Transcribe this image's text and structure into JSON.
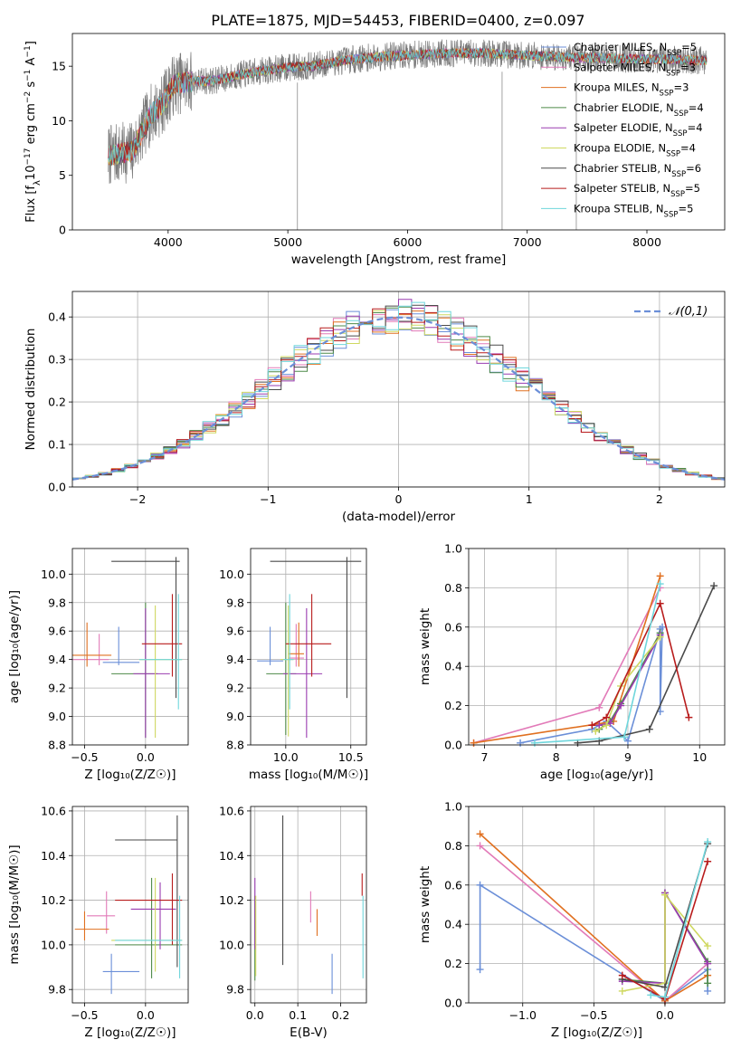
{
  "title": "PLATE=1875, MJD=54453, FIBERID=0400, z=0.097",
  "models": [
    {
      "label": "Chabrier MILES, N",
      "sub": "SSP",
      "tail": "=5",
      "color": "#6b8fd8"
    },
    {
      "label": "Salpeter MILES, N",
      "sub": "SSP",
      "tail": "=3",
      "color": "#e27ab8"
    },
    {
      "label": "Kroupa MILES, N",
      "sub": "SSP",
      "tail": "=3",
      "color": "#e07020"
    },
    {
      "label": "Chabrier ELODIE, N",
      "sub": "SSP",
      "tail": "=4",
      "color": "#4e8a48"
    },
    {
      "label": "Salpeter ELODIE, N",
      "sub": "SSP",
      "tail": "=4",
      "color": "#9a3bb0"
    },
    {
      "label": "Kroupa ELODIE, N",
      "sub": "SSP",
      "tail": "=4",
      "color": "#cfd860"
    },
    {
      "label": "Chabrier STELIB, N",
      "sub": "SSP",
      "tail": "=6",
      "color": "#4a4a4a"
    },
    {
      "label": "Salpeter STELIB, N",
      "sub": "SSP",
      "tail": "=5",
      "color": "#b81c1c"
    },
    {
      "label": "Kroupa STELIB, N",
      "sub": "SSP",
      "tail": "=5",
      "color": "#6fd6dc"
    }
  ],
  "chart_data": [
    {
      "id": "spectrum",
      "type": "line",
      "xlabel": "wavelength [Angstrom, rest frame]",
      "ylabel": "Flux [f",
      "ylabel_parts": [
        "Flux [f",
        "λ",
        "10",
        "−17",
        " erg cm",
        "−2",
        " s",
        "−1",
        " A",
        "−1",
        "]"
      ],
      "xlim": [
        3200,
        8650
      ],
      "ylim": [
        0,
        18
      ],
      "xticks": [
        4000,
        5000,
        6000,
        7000,
        8000
      ],
      "yticks": [
        0,
        5,
        10,
        15
      ],
      "continuum_anchors": {
        "wavelength": [
          3500,
          3700,
          3850,
          3950,
          4050,
          4200,
          4400,
          4600,
          4800,
          5000,
          5200,
          5500,
          5800,
          6000,
          6300,
          6600,
          7000,
          7400,
          7800,
          8200,
          8500
        ],
        "flux": [
          6.8,
          7.2,
          10.5,
          11.5,
          13.4,
          13.6,
          13.7,
          14.2,
          14.6,
          14.9,
          15.0,
          15.6,
          15.9,
          16.0,
          16.2,
          16.2,
          16.0,
          15.8,
          15.7,
          15.6,
          15.5
        ]
      },
      "spikes": [
        {
          "x": 5080,
          "ymin": 0,
          "ymax": 13.5
        },
        {
          "x": 6790,
          "ymin": 0,
          "ymax": 14.5
        },
        {
          "x": 7410,
          "ymin": 0,
          "ymax": 16.0
        }
      ]
    },
    {
      "id": "residual_histogram",
      "type": "histogram",
      "xlabel": "(data-model)/error",
      "ylabel": "Normed distribution",
      "xlim": [
        -2.5,
        2.5
      ],
      "ylim": [
        0,
        0.46
      ],
      "xticks": [
        -2,
        -1,
        0,
        1,
        2
      ],
      "yticks": [
        0.0,
        0.1,
        0.2,
        0.3,
        0.4
      ],
      "bin_width": 0.1,
      "reference": {
        "label": "𝒩(0,1)",
        "mean": 0,
        "sigma": 1,
        "color": "#6b8fd8"
      }
    },
    {
      "id": "age_vs_Z",
      "type": "errorbar",
      "xlabel": "Z [log₁₀(Z/Z☉)]",
      "ylabel": "age  [log₁₀(age/yr)]",
      "xlim": [
        -0.6,
        0.35
      ],
      "ylim": [
        8.8,
        10.18
      ],
      "xticks": [
        -0.5,
        0.0
      ],
      "yticks": [
        8.8,
        9.0,
        9.2,
        9.4,
        9.6,
        9.8,
        10.0
      ],
      "points": [
        {
          "x": -0.22,
          "y": 9.38,
          "xlo": -0.35,
          "xhi": -0.05,
          "ylo": 9.36,
          "yhi": 9.63
        },
        {
          "x": -0.38,
          "y": 9.4,
          "xlo": -0.6,
          "xhi": -0.3,
          "ylo": 9.36,
          "yhi": 9.58
        },
        {
          "x": -0.48,
          "y": 9.43,
          "xlo": -0.6,
          "xhi": -0.28,
          "ylo": 9.35,
          "yhi": 9.66
        },
        {
          "x": 0.0,
          "y": 9.3,
          "xlo": -0.28,
          "xhi": 0.1,
          "ylo": 8.85,
          "yhi": 9.8
        },
        {
          "x": 0.0,
          "y": 9.3,
          "xlo": -0.1,
          "xhi": 0.2,
          "ylo": 8.85,
          "yhi": 9.76
        },
        {
          "x": 0.08,
          "y": 9.4,
          "xlo": -0.05,
          "xhi": 0.3,
          "ylo": 8.85,
          "yhi": 9.78
        },
        {
          "x": 0.25,
          "y": 10.09,
          "xlo": -0.28,
          "xhi": 0.28,
          "ylo": 9.13,
          "yhi": 10.12
        },
        {
          "x": 0.22,
          "y": 9.51,
          "xlo": -0.03,
          "xhi": 0.3,
          "ylo": 9.28,
          "yhi": 9.86
        },
        {
          "x": 0.27,
          "y": 9.4,
          "xlo": -0.05,
          "xhi": 0.3,
          "ylo": 9.05,
          "yhi": 9.86
        }
      ]
    },
    {
      "id": "age_vs_mass",
      "type": "errorbar",
      "xlabel": "mass [log₁₀(M/M☉)]",
      "ylabel": "",
      "xlim": [
        9.73,
        10.62
      ],
      "ylim": [
        8.8,
        10.18
      ],
      "xticks": [
        10.0,
        10.5
      ],
      "yticks": [
        8.8,
        9.0,
        9.2,
        9.4,
        9.6,
        9.8,
        10.0
      ],
      "points": [
        {
          "x": 9.88,
          "y": 9.39,
          "xlo": 9.78,
          "xhi": 9.98,
          "ylo": 9.36,
          "yhi": 9.63
        },
        {
          "x": 10.08,
          "y": 9.41,
          "xlo": 10.02,
          "xhi": 10.14,
          "ylo": 9.35,
          "yhi": 9.65
        },
        {
          "x": 10.1,
          "y": 9.44,
          "xlo": 10.02,
          "xhi": 10.14,
          "ylo": 9.35,
          "yhi": 9.66
        },
        {
          "x": 10.0,
          "y": 9.3,
          "xlo": 9.85,
          "xhi": 10.08,
          "ylo": 8.87,
          "yhi": 9.8
        },
        {
          "x": 10.16,
          "y": 9.3,
          "xlo": 9.98,
          "xhi": 10.28,
          "ylo": 8.85,
          "yhi": 9.76
        },
        {
          "x": 10.02,
          "y": 9.4,
          "xlo": 9.96,
          "xhi": 10.06,
          "ylo": 8.86,
          "yhi": 9.78
        },
        {
          "x": 10.47,
          "y": 10.09,
          "xlo": 9.88,
          "xhi": 10.58,
          "ylo": 9.13,
          "yhi": 10.12
        },
        {
          "x": 10.2,
          "y": 9.51,
          "xlo": 10.0,
          "xhi": 10.35,
          "ylo": 9.28,
          "yhi": 9.86
        },
        {
          "x": 10.03,
          "y": 9.4,
          "xlo": 9.98,
          "xhi": 10.06,
          "ylo": 9.05,
          "yhi": 9.86
        }
      ]
    },
    {
      "id": "weight_vs_age",
      "type": "line",
      "xlabel": "age  [log₁₀(age/yr)]",
      "ylabel": "mass weight",
      "xlim": [
        6.78,
        10.35
      ],
      "ylim": [
        0,
        1.0
      ],
      "xticks": [
        7,
        8,
        9,
        10
      ],
      "yticks": [
        0.0,
        0.2,
        0.4,
        0.6,
        0.8,
        1.0
      ],
      "series": [
        {
          "x": [
            7.5,
            8.5,
            8.7,
            9.0,
            9.45,
            9.45,
            9.48
          ],
          "y": [
            0.01,
            0.08,
            0.12,
            0.02,
            0.59,
            0.17,
            0.6
          ]
        },
        {
          "x": [
            6.85,
            8.6,
            9.45
          ],
          "y": [
            0.01,
            0.19,
            0.8
          ]
        },
        {
          "x": [
            6.85,
            8.8,
            9.45
          ],
          "y": [
            0.01,
            0.12,
            0.86
          ]
        },
        {
          "x": [
            8.6,
            8.75,
            8.9,
            9.45
          ],
          "y": [
            0.08,
            0.12,
            0.21,
            0.57
          ]
        },
        {
          "x": [
            8.6,
            8.75,
            8.9,
            9.45
          ],
          "y": [
            0.1,
            0.11,
            0.2,
            0.56
          ]
        },
        {
          "x": [
            8.55,
            8.7,
            8.9,
            9.45
          ],
          "y": [
            0.07,
            0.1,
            0.3,
            0.55
          ]
        },
        {
          "x": [
            8.3,
            8.6,
            9.3,
            10.2
          ],
          "y": [
            0.01,
            0.02,
            0.08,
            0.81
          ]
        },
        {
          "x": [
            8.5,
            8.7,
            9.45,
            9.85
          ],
          "y": [
            0.1,
            0.14,
            0.72,
            0.14
          ]
        },
        {
          "x": [
            7.7,
            8.95,
            9.45
          ],
          "y": [
            0.01,
            0.04,
            0.82
          ]
        }
      ]
    },
    {
      "id": "mass_vs_Z",
      "type": "errorbar",
      "xlabel": "Z [log₁₀(Z/Z☉)]",
      "ylabel": "mass [log₁₀(M/M☉)]",
      "xlim": [
        -0.6,
        0.35
      ],
      "ylim": [
        9.74,
        10.62
      ],
      "xticks": [
        -0.5,
        0.0
      ],
      "yticks": [
        9.8,
        10.0,
        10.2,
        10.4,
        10.6
      ],
      "points": [
        {
          "x": -0.28,
          "y": 9.88,
          "xlo": -0.35,
          "xhi": -0.05,
          "ylo": 9.78,
          "yhi": 9.96
        },
        {
          "x": -0.32,
          "y": 10.13,
          "xlo": -0.48,
          "xhi": -0.25,
          "ylo": 10.05,
          "yhi": 10.24
        },
        {
          "x": -0.5,
          "y": 10.07,
          "xlo": -0.58,
          "xhi": -0.3,
          "ylo": 10.02,
          "yhi": 10.15
        },
        {
          "x": 0.05,
          "y": 10.0,
          "xlo": -0.25,
          "xhi": 0.3,
          "ylo": 9.85,
          "yhi": 10.3
        },
        {
          "x": 0.12,
          "y": 10.16,
          "xlo": -0.12,
          "xhi": 0.25,
          "ylo": 9.98,
          "yhi": 10.28
        },
        {
          "x": 0.08,
          "y": 10.02,
          "xlo": -0.28,
          "xhi": 0.3,
          "ylo": 9.88,
          "yhi": 10.3
        },
        {
          "x": 0.26,
          "y": 10.47,
          "xlo": -0.25,
          "xhi": 0.26,
          "ylo": 9.9,
          "yhi": 10.58
        },
        {
          "x": 0.22,
          "y": 10.2,
          "xlo": -0.25,
          "xhi": 0.3,
          "ylo": 10.0,
          "yhi": 10.32
        },
        {
          "x": 0.28,
          "y": 10.02,
          "xlo": -0.25,
          "xhi": 0.3,
          "ylo": 9.85,
          "yhi": 10.22
        }
      ]
    },
    {
      "id": "mass_vs_ebv",
      "type": "errorbar",
      "xlabel": "E(B-V)",
      "ylabel": "",
      "xlim": [
        -0.01,
        0.26
      ],
      "ylim": [
        9.74,
        10.62
      ],
      "xticks": [
        0.0,
        0.1,
        0.2
      ],
      "yticks": [
        9.8,
        10.0,
        10.2,
        10.4,
        10.6
      ],
      "points": [
        {
          "x": 0.18,
          "y": 9.88,
          "ylo": 9.78,
          "yhi": 9.96
        },
        {
          "x": 0.13,
          "y": 10.17,
          "ylo": 10.1,
          "yhi": 10.24
        },
        {
          "x": 0.145,
          "y": 10.1,
          "ylo": 10.04,
          "yhi": 10.16
        },
        {
          "x": 0.0,
          "y": 10.02,
          "ylo": 9.84,
          "yhi": 10.22
        },
        {
          "x": 0.0,
          "y": 10.16,
          "ylo": 9.98,
          "yhi": 10.3
        },
        {
          "x": 0.002,
          "y": 10.0,
          "ylo": 9.86,
          "yhi": 10.22
        },
        {
          "x": 0.065,
          "y": 10.22,
          "ylo": 9.91,
          "yhi": 10.58
        },
        {
          "x": 0.25,
          "y": 10.27,
          "ylo": 10.22,
          "yhi": 10.32
        },
        {
          "x": 0.252,
          "y": 10.02,
          "ylo": 9.85,
          "yhi": 10.22
        }
      ]
    },
    {
      "id": "weight_vs_Z",
      "type": "line",
      "xlabel": "Z [log₁₀(Z/Z☉)]",
      "ylabel": "mass weight",
      "xlim": [
        -1.38,
        0.42
      ],
      "ylim": [
        0,
        1.0
      ],
      "xticks": [
        -1.0,
        -0.5,
        0.0
      ],
      "yticks": [
        0.0,
        0.2,
        0.4,
        0.6,
        0.8,
        1.0
      ],
      "series": [
        {
          "x": [
            -1.3,
            -1.3,
            0.0,
            0.3,
            0.3
          ],
          "y": [
            0.17,
            0.6,
            0.01,
            0.17,
            0.06
          ]
        },
        {
          "x": [
            -1.3,
            0.0,
            0.3
          ],
          "y": [
            0.8,
            0.01,
            0.2
          ]
        },
        {
          "x": [
            -1.3,
            0.0,
            0.3
          ],
          "y": [
            0.86,
            0.01,
            0.14
          ]
        },
        {
          "x": [
            -0.3,
            0.0,
            0.0,
            0.3,
            0.3
          ],
          "y": [
            0.12,
            0.1,
            0.56,
            0.21,
            0.1
          ]
        },
        {
          "x": [
            -0.3,
            0.0,
            0.0,
            0.3
          ],
          "y": [
            0.11,
            0.1,
            0.56,
            0.2
          ]
        },
        {
          "x": [
            -0.3,
            0.0,
            0.0,
            0.3
          ],
          "y": [
            0.06,
            0.1,
            0.55,
            0.29
          ]
        },
        {
          "x": [
            -0.3,
            0.0,
            0.3
          ],
          "y": [
            0.12,
            0.08,
            0.81
          ]
        },
        {
          "x": [
            -0.3,
            0.0,
            0.3
          ],
          "y": [
            0.14,
            0.02,
            0.72
          ]
        },
        {
          "x": [
            -0.1,
            0.0,
            0.3
          ],
          "y": [
            0.04,
            0.03,
            0.82
          ]
        }
      ]
    }
  ]
}
